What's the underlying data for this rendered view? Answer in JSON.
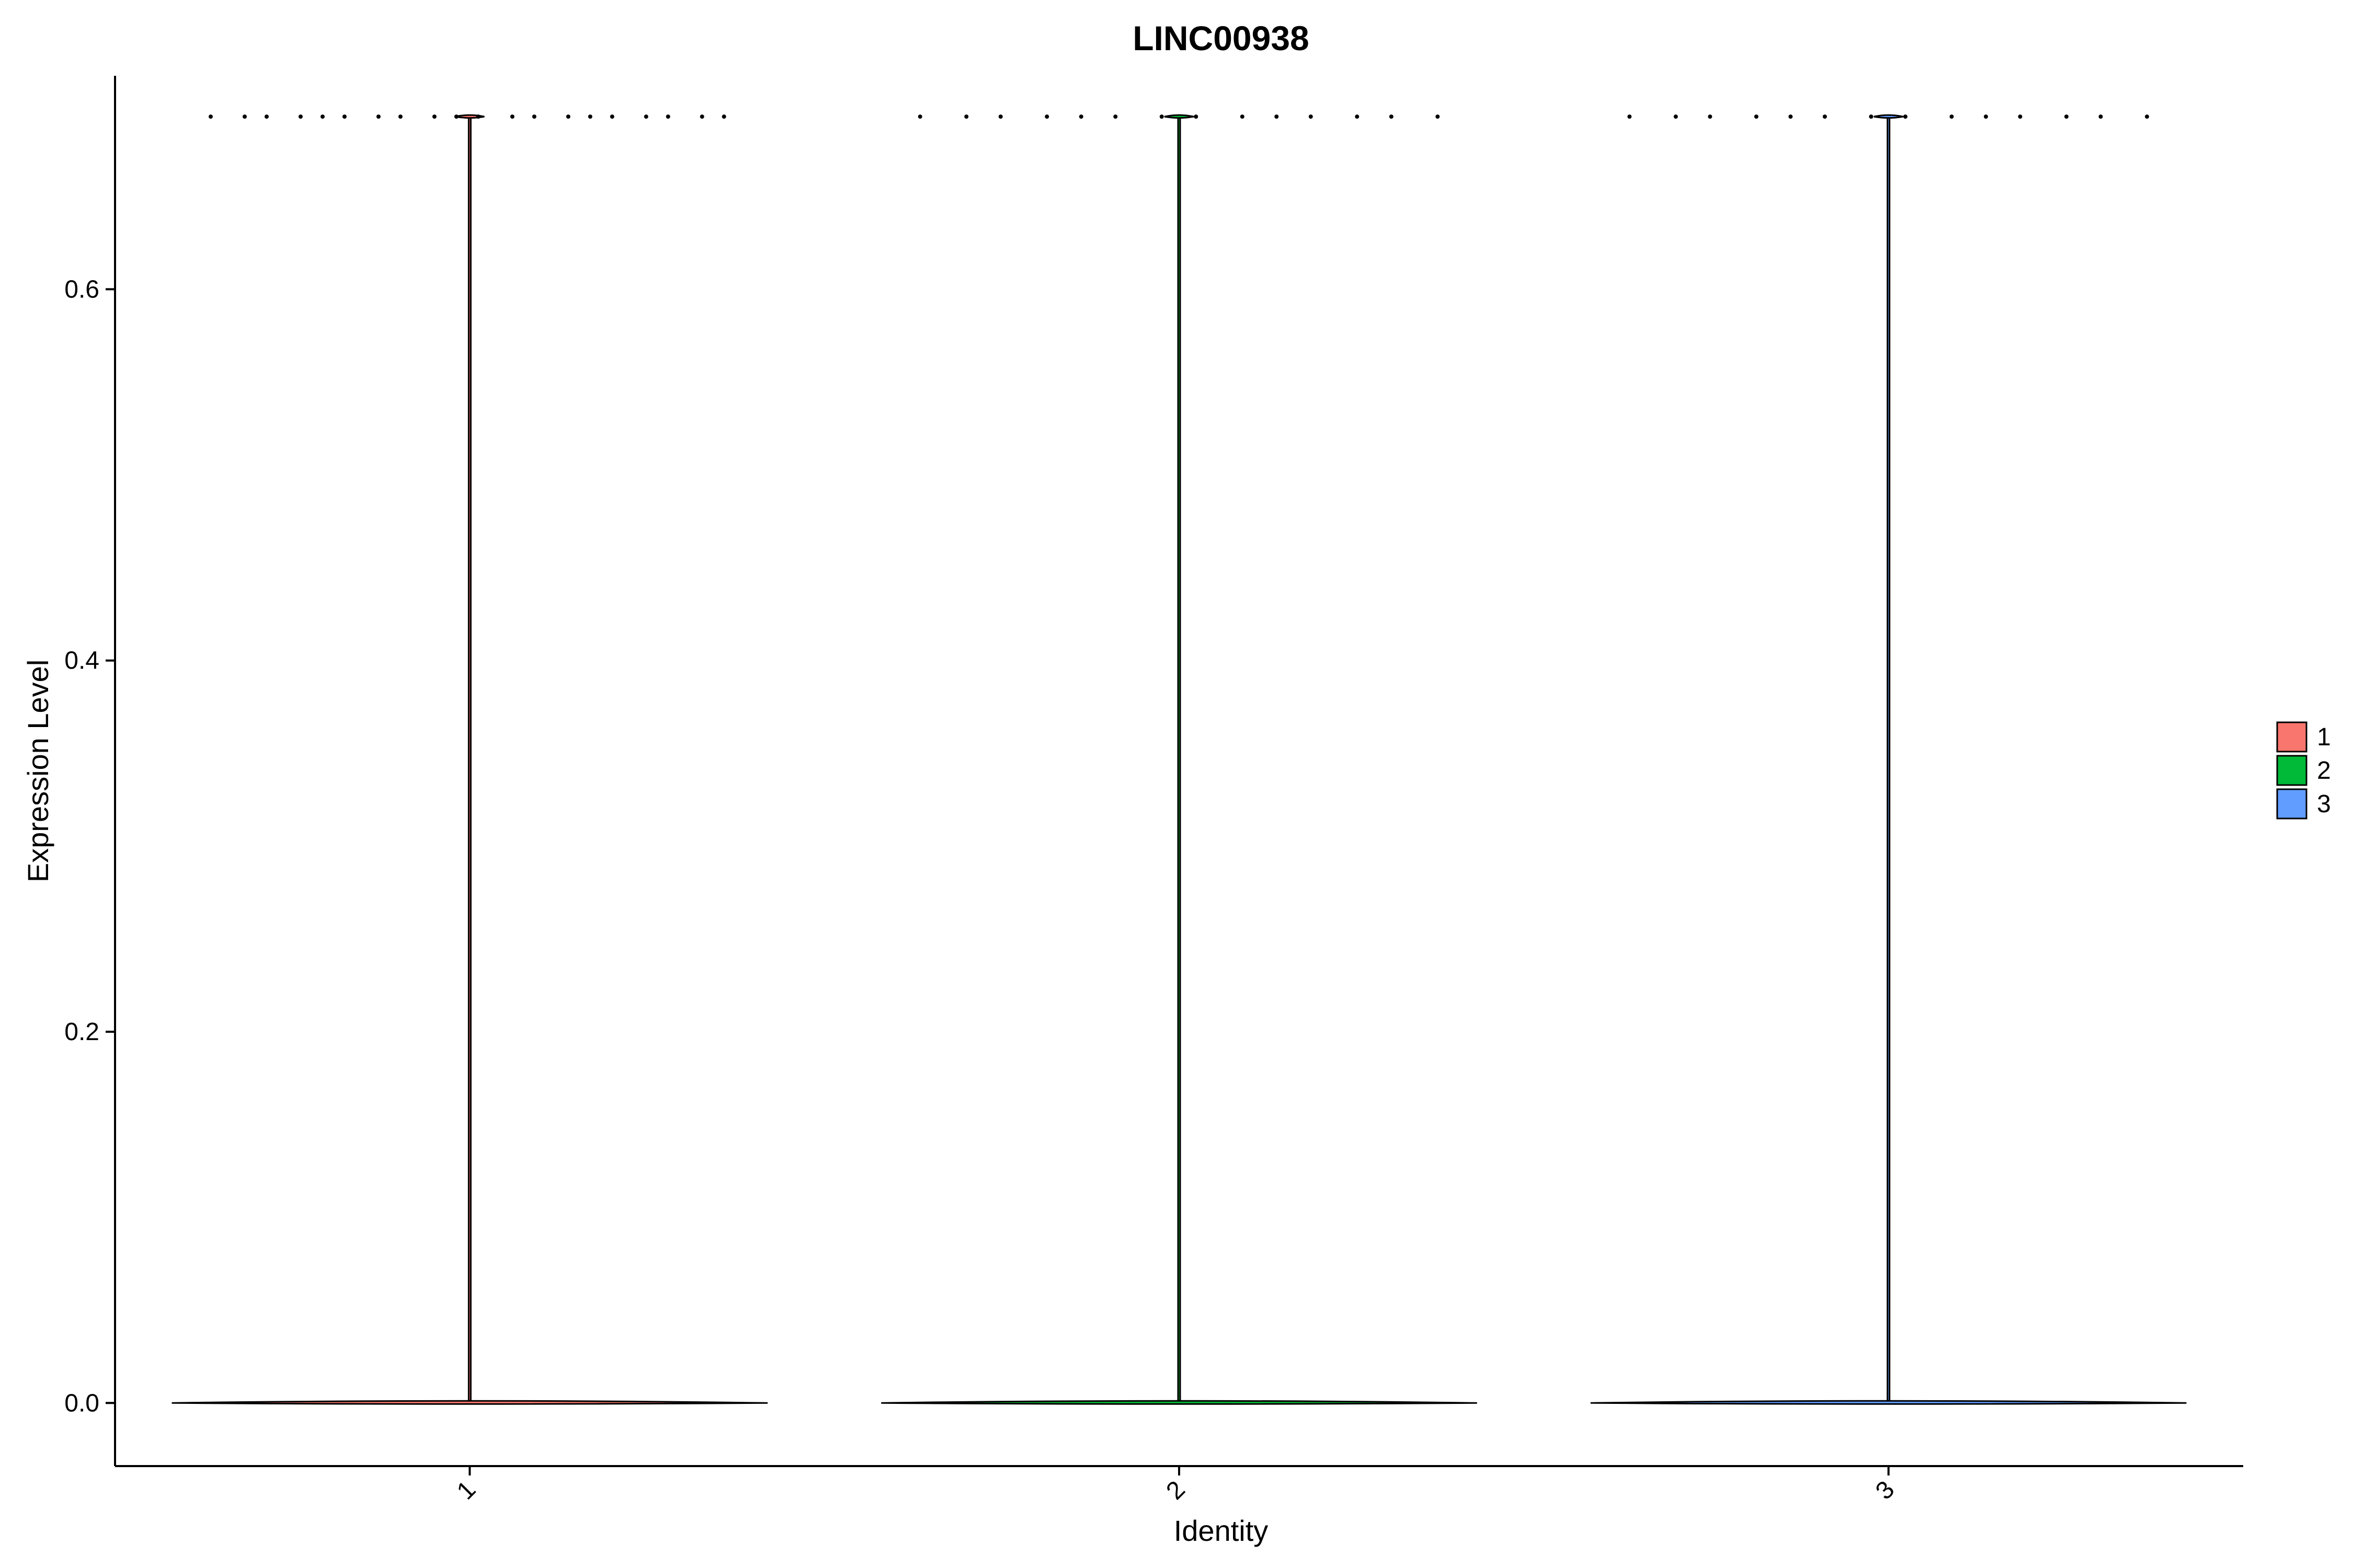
{
  "chart_data": {
    "type": "violin",
    "title": "LINC00938",
    "xlabel": "Identity",
    "ylabel": "Expression Level",
    "categories": [
      "1",
      "2",
      "3"
    ],
    "ylim": [
      -0.034,
      0.715
    ],
    "yticks": [
      0.0,
      0.2,
      0.4,
      0.6
    ],
    "ytick_labels": [
      "0.0",
      "0.2",
      "0.4",
      "0.6"
    ],
    "grid": false,
    "legend_position": "right",
    "series": [
      {
        "name": "1",
        "color": "#F8766D",
        "min": 0.0,
        "max": 0.693,
        "median": 0.0,
        "outliers": [
          0.693,
          0.693,
          0.693,
          0.693,
          0.693,
          0.693,
          0.693,
          0.693,
          0.693,
          0.693,
          0.693,
          0.693,
          0.693,
          0.693,
          0.693,
          0.693,
          0.693,
          0.693,
          0.693,
          0.693
        ]
      },
      {
        "name": "2",
        "color": "#00BA38",
        "min": 0.0,
        "max": 0.693,
        "median": 0.0,
        "outliers": [
          0.693,
          0.693,
          0.693,
          0.693,
          0.693,
          0.693,
          0.693,
          0.693,
          0.693,
          0.693,
          0.693,
          0.693,
          0.693,
          0.693
        ]
      },
      {
        "name": "3",
        "color": "#619CFF",
        "min": 0.0,
        "max": 0.693,
        "median": 0.0,
        "outliers": [
          0.693,
          0.693,
          0.693,
          0.693,
          0.693,
          0.693,
          0.693,
          0.693,
          0.693,
          0.693,
          0.693,
          0.693,
          0.693,
          0.693
        ]
      }
    ]
  }
}
